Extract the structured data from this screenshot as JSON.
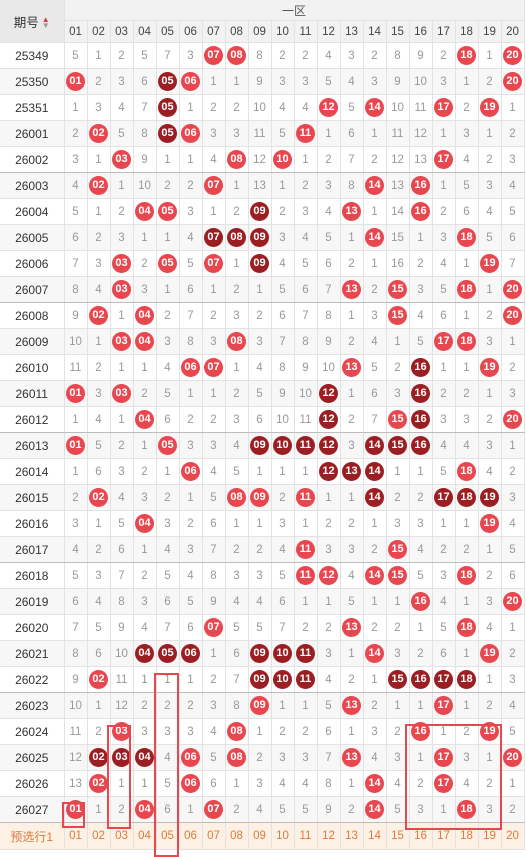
{
  "header": {
    "period_label": "期号",
    "zone_label": "一区",
    "sort_up": "▲",
    "sort_down": "▼"
  },
  "columns": [
    "01",
    "02",
    "03",
    "04",
    "05",
    "06",
    "07",
    "08",
    "09",
    "10",
    "11",
    "12",
    "13",
    "14",
    "15",
    "16",
    "17",
    "18",
    "19",
    "20"
  ],
  "rows": [
    {
      "period": "25349",
      "cells": [
        "5",
        "1",
        "2",
        "5",
        "7",
        "3",
        "07",
        "08",
        "8",
        "2",
        "2",
        "4",
        "3",
        "2",
        "8",
        "9",
        "2",
        "18",
        "1",
        "20"
      ],
      "balls": {
        "6": "red",
        "7": "red",
        "17": "red",
        "19": "red"
      }
    },
    {
      "period": "25350",
      "cells": [
        "01",
        "2",
        "3",
        "6",
        "05",
        "06",
        "1",
        "1",
        "9",
        "3",
        "3",
        "5",
        "4",
        "3",
        "9",
        "10",
        "3",
        "1",
        "2",
        "20"
      ],
      "balls": {
        "0": "red",
        "4": "dark",
        "5": "red",
        "19": "red"
      }
    },
    {
      "period": "25351",
      "cells": [
        "1",
        "3",
        "4",
        "7",
        "05",
        "1",
        "2",
        "2",
        "10",
        "4",
        "4",
        "12",
        "5",
        "14",
        "10",
        "11",
        "17",
        "2",
        "19",
        "1"
      ],
      "balls": {
        "4": "dark",
        "11": "red",
        "13": "red",
        "16": "red",
        "18": "red"
      }
    },
    {
      "period": "26001",
      "cells": [
        "2",
        "02",
        "5",
        "8",
        "05",
        "06",
        "3",
        "3",
        "11",
        "5",
        "11",
        "1",
        "6",
        "1",
        "11",
        "12",
        "1",
        "3",
        "1",
        "2"
      ],
      "balls": {
        "1": "red",
        "4": "dark",
        "5": "red",
        "10": "red"
      }
    },
    {
      "period": "26002",
      "cells": [
        "3",
        "1",
        "03",
        "9",
        "1",
        "1",
        "4",
        "08",
        "12",
        "10",
        "1",
        "2",
        "7",
        "2",
        "12",
        "13",
        "17",
        "4",
        "2",
        "3"
      ],
      "balls": {
        "2": "red",
        "7": "red",
        "9": "red",
        "16": "red"
      }
    },
    {
      "period": "26003",
      "cells": [
        "4",
        "02",
        "1",
        "10",
        "2",
        "2",
        "07",
        "1",
        "13",
        "1",
        "2",
        "3",
        "8",
        "14",
        "13",
        "16",
        "1",
        "5",
        "3",
        "4"
      ],
      "balls": {
        "1": "red",
        "6": "red",
        "13": "red",
        "15": "red"
      }
    },
    {
      "period": "26004",
      "cells": [
        "5",
        "1",
        "2",
        "04",
        "05",
        "3",
        "1",
        "2",
        "09",
        "2",
        "3",
        "4",
        "13",
        "1",
        "14",
        "16",
        "2",
        "6",
        "4",
        "5"
      ],
      "balls": {
        "3": "red",
        "4": "red",
        "8": "dark",
        "12": "red",
        "15": "red"
      }
    },
    {
      "period": "26005",
      "cells": [
        "6",
        "2",
        "3",
        "1",
        "1",
        "4",
        "07",
        "08",
        "09",
        "3",
        "4",
        "5",
        "1",
        "14",
        "15",
        "1",
        "3",
        "18",
        "5",
        "6"
      ],
      "balls": {
        "6": "dark",
        "7": "dark",
        "8": "dark",
        "13": "red",
        "17": "red"
      }
    },
    {
      "period": "26006",
      "cells": [
        "7",
        "3",
        "03",
        "2",
        "05",
        "5",
        "07",
        "1",
        "09",
        "4",
        "5",
        "6",
        "2",
        "1",
        "16",
        "2",
        "4",
        "1",
        "19",
        "7"
      ],
      "balls": {
        "2": "red",
        "4": "red",
        "6": "red",
        "8": "dark",
        "18": "red"
      }
    },
    {
      "period": "26007",
      "cells": [
        "8",
        "4",
        "03",
        "3",
        "1",
        "6",
        "1",
        "2",
        "1",
        "5",
        "6",
        "7",
        "13",
        "2",
        "15",
        "3",
        "5",
        "18",
        "1",
        "20"
      ],
      "balls": {
        "2": "red",
        "12": "red",
        "14": "red",
        "17": "red",
        "19": "red"
      }
    },
    {
      "period": "26008",
      "cells": [
        "9",
        "02",
        "1",
        "04",
        "2",
        "7",
        "2",
        "3",
        "2",
        "6",
        "7",
        "8",
        "1",
        "3",
        "15",
        "4",
        "6",
        "1",
        "2",
        "20"
      ],
      "balls": {
        "1": "red",
        "3": "red",
        "14": "red",
        "19": "red"
      }
    },
    {
      "period": "26009",
      "cells": [
        "10",
        "1",
        "03",
        "04",
        "3",
        "8",
        "3",
        "08",
        "3",
        "7",
        "8",
        "9",
        "2",
        "4",
        "1",
        "5",
        "17",
        "18",
        "3",
        "1"
      ],
      "balls": {
        "2": "red",
        "3": "red",
        "7": "red",
        "16": "red",
        "17": "red"
      }
    },
    {
      "period": "26010",
      "cells": [
        "11",
        "2",
        "1",
        "1",
        "4",
        "06",
        "07",
        "1",
        "4",
        "8",
        "9",
        "10",
        "13",
        "5",
        "2",
        "16",
        "1",
        "1",
        "19",
        "2"
      ],
      "balls": {
        "5": "red",
        "6": "red",
        "12": "red",
        "15": "dark",
        "18": "red"
      }
    },
    {
      "period": "26011",
      "cells": [
        "01",
        "3",
        "03",
        "2",
        "5",
        "1",
        "1",
        "2",
        "5",
        "9",
        "10",
        "12",
        "1",
        "6",
        "3",
        "16",
        "2",
        "2",
        "1",
        "3"
      ],
      "balls": {
        "0": "red",
        "2": "red",
        "11": "dark",
        "15": "dark"
      }
    },
    {
      "period": "26012",
      "cells": [
        "1",
        "4",
        "1",
        "04",
        "6",
        "2",
        "2",
        "3",
        "6",
        "10",
        "11",
        "12",
        "2",
        "7",
        "15",
        "16",
        "3",
        "3",
        "2",
        "20"
      ],
      "balls": {
        "3": "red",
        "11": "dark",
        "14": "red",
        "15": "dark",
        "19": "red"
      }
    },
    {
      "period": "26013",
      "cells": [
        "01",
        "5",
        "2",
        "1",
        "05",
        "3",
        "3",
        "4",
        "09",
        "10",
        "11",
        "12",
        "3",
        "14",
        "15",
        "16",
        "4",
        "4",
        "3",
        "1"
      ],
      "balls": {
        "0": "red",
        "4": "red",
        "8": "dark",
        "9": "dark",
        "10": "dark",
        "11": "dark",
        "13": "dark",
        "14": "dark",
        "15": "dark"
      }
    },
    {
      "period": "26014",
      "cells": [
        "1",
        "6",
        "3",
        "2",
        "1",
        "06",
        "4",
        "5",
        "1",
        "1",
        "1",
        "12",
        "13",
        "14",
        "1",
        "1",
        "5",
        "18",
        "4",
        "2"
      ],
      "balls": {
        "5": "red",
        "11": "dark",
        "12": "dark",
        "13": "dark",
        "17": "red"
      }
    },
    {
      "period": "26015",
      "cells": [
        "2",
        "02",
        "4",
        "3",
        "2",
        "1",
        "5",
        "08",
        "09",
        "2",
        "11",
        "1",
        "1",
        "14",
        "2",
        "2",
        "17",
        "18",
        "19",
        "3"
      ],
      "balls": {
        "1": "red",
        "7": "red",
        "8": "red",
        "10": "red",
        "13": "dark",
        "16": "dark",
        "17": "dark",
        "18": "dark"
      }
    },
    {
      "period": "26016",
      "cells": [
        "3",
        "1",
        "5",
        "04",
        "3",
        "2",
        "6",
        "1",
        "1",
        "3",
        "1",
        "2",
        "2",
        "1",
        "3",
        "3",
        "1",
        "1",
        "19",
        "4"
      ],
      "balls": {
        "3": "red",
        "18": "red"
      }
    },
    {
      "period": "26017",
      "cells": [
        "4",
        "2",
        "6",
        "1",
        "4",
        "3",
        "7",
        "2",
        "2",
        "4",
        "11",
        "3",
        "3",
        "2",
        "15",
        "4",
        "2",
        "2",
        "1",
        "5"
      ],
      "balls": {
        "10": "red",
        "14": "red"
      }
    },
    {
      "period": "26018",
      "cells": [
        "5",
        "3",
        "7",
        "2",
        "5",
        "4",
        "8",
        "3",
        "3",
        "5",
        "11",
        "12",
        "4",
        "14",
        "15",
        "5",
        "3",
        "18",
        "2",
        "6"
      ],
      "balls": {
        "10": "red",
        "11": "red",
        "13": "red",
        "14": "red",
        "17": "red"
      }
    },
    {
      "period": "26019",
      "cells": [
        "6",
        "4",
        "8",
        "3",
        "6",
        "5",
        "9",
        "4",
        "4",
        "6",
        "1",
        "1",
        "5",
        "1",
        "1",
        "16",
        "4",
        "1",
        "3",
        "20"
      ],
      "balls": {
        "15": "red",
        "19": "red"
      }
    },
    {
      "period": "26020",
      "cells": [
        "7",
        "5",
        "9",
        "4",
        "7",
        "6",
        "07",
        "5",
        "5",
        "7",
        "2",
        "2",
        "13",
        "2",
        "2",
        "1",
        "5",
        "18",
        "4",
        "1"
      ],
      "balls": {
        "6": "red",
        "12": "red",
        "17": "red"
      }
    },
    {
      "period": "26021",
      "cells": [
        "8",
        "6",
        "10",
        "04",
        "05",
        "06",
        "1",
        "6",
        "09",
        "10",
        "11",
        "3",
        "1",
        "14",
        "3",
        "2",
        "6",
        "1",
        "19",
        "2"
      ],
      "balls": {
        "3": "dark",
        "4": "dark",
        "5": "dark",
        "8": "dark",
        "9": "dark",
        "10": "dark",
        "13": "red",
        "18": "red"
      }
    },
    {
      "period": "26022",
      "cells": [
        "9",
        "02",
        "11",
        "1",
        "1",
        "1",
        "2",
        "7",
        "09",
        "10",
        "11",
        "4",
        "2",
        "1",
        "15",
        "16",
        "17",
        "18",
        "1",
        "3"
      ],
      "balls": {
        "1": "red",
        "8": "dark",
        "9": "dark",
        "10": "dark",
        "14": "dark",
        "15": "dark",
        "16": "dark",
        "17": "dark"
      }
    },
    {
      "period": "26023",
      "cells": [
        "10",
        "1",
        "12",
        "2",
        "2",
        "2",
        "3",
        "8",
        "09",
        "1",
        "1",
        "5",
        "13",
        "2",
        "1",
        "1",
        "17",
        "1",
        "2",
        "4"
      ],
      "balls": {
        "8": "red",
        "12": "red",
        "16": "red"
      }
    },
    {
      "period": "26024",
      "cells": [
        "11",
        "2",
        "03",
        "3",
        "3",
        "3",
        "4",
        "08",
        "1",
        "2",
        "2",
        "6",
        "1",
        "3",
        "2",
        "16",
        "1",
        "2",
        "19",
        "5"
      ],
      "balls": {
        "2": "red",
        "7": "red",
        "15": "red",
        "18": "red"
      }
    },
    {
      "period": "26025",
      "cells": [
        "12",
        "02",
        "03",
        "04",
        "4",
        "06",
        "5",
        "08",
        "2",
        "3",
        "3",
        "7",
        "13",
        "4",
        "3",
        "1",
        "17",
        "3",
        "1",
        "20"
      ],
      "balls": {
        "1": "dark",
        "2": "dark",
        "3": "dark",
        "5": "red",
        "7": "red",
        "12": "red",
        "16": "red",
        "19": "red"
      }
    },
    {
      "period": "26026",
      "cells": [
        "13",
        "02",
        "1",
        "1",
        "5",
        "06",
        "6",
        "1",
        "3",
        "4",
        "4",
        "8",
        "1",
        "14",
        "4",
        "2",
        "17",
        "4",
        "2",
        "1"
      ],
      "balls": {
        "1": "red",
        "5": "red",
        "13": "red",
        "16": "red"
      }
    },
    {
      "period": "26027",
      "cells": [
        "01",
        "1",
        "2",
        "04",
        "6",
        "1",
        "07",
        "2",
        "4",
        "5",
        "5",
        "9",
        "2",
        "14",
        "5",
        "3",
        "1",
        "18",
        "3",
        "2"
      ],
      "balls": {
        "0": "red",
        "3": "red",
        "6": "red",
        "13": "red",
        "17": "red"
      }
    }
  ],
  "forecast": {
    "label": "预选行1",
    "cells": [
      "01",
      "02",
      "03",
      "04",
      "05",
      "06",
      "07",
      "08",
      "09",
      "10",
      "11",
      "12",
      "13",
      "14",
      "15",
      "16",
      "17",
      "18",
      "19",
      "20"
    ]
  }
}
